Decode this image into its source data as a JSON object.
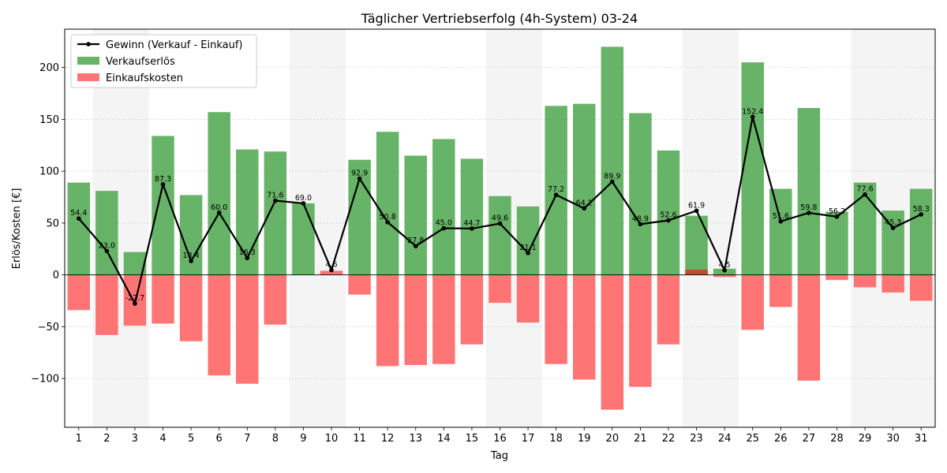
{
  "chart_data": {
    "type": "bar",
    "title": "Täglicher Vertriebserfolg (4h-System) 03-24",
    "xlabel": "Tag",
    "ylabel": "Erlös/Kosten [€]",
    "ylim": [
      -147,
      237
    ],
    "yticks": [
      -100,
      -50,
      0,
      50,
      100,
      150,
      200
    ],
    "ytick_labels": [
      "−100",
      "−50",
      "0",
      "50",
      "100",
      "150",
      "200"
    ],
    "grid": "horizontal dotted",
    "legend_position": "top-left",
    "categories": [
      "1",
      "2",
      "3",
      "4",
      "5",
      "6",
      "7",
      "8",
      "9",
      "10",
      "11",
      "12",
      "13",
      "14",
      "15",
      "16",
      "17",
      "18",
      "19",
      "20",
      "21",
      "22",
      "23",
      "24",
      "25",
      "26",
      "27",
      "28",
      "29",
      "30",
      "31"
    ],
    "weekend_days": [
      2,
      3,
      9,
      10,
      16,
      17,
      23,
      24,
      29,
      30,
      31
    ],
    "series": [
      {
        "name": "Verkaufserlös",
        "kind": "bar",
        "color": "#4ca64c",
        "values": [
          89,
          81,
          22,
          134,
          77,
          157,
          121,
          119,
          69,
          0,
          111,
          138,
          115,
          131,
          112,
          76,
          66,
          163,
          165,
          220,
          156,
          120,
          57,
          6,
          205,
          83,
          161,
          61,
          89,
          62,
          83
        ]
      },
      {
        "name": "Einkaufskosten",
        "kind": "bar",
        "color": "#ff6666",
        "values": [
          -34,
          -58,
          -49,
          -47,
          -64,
          -97,
          -105,
          -48,
          0,
          4,
          -19,
          -88,
          -87,
          -86,
          -67,
          -27,
          -46,
          -86,
          -101,
          -130,
          -108,
          -67,
          5,
          -2,
          -53,
          -31,
          -102,
          -5,
          -12,
          -17,
          -25
        ]
      },
      {
        "name": "Gewinn (Verkauf - Einkauf)",
        "kind": "line",
        "color": "#000000",
        "values": [
          54.4,
          23.0,
          -27.7,
          87.3,
          13.4,
          60.0,
          16.3,
          71.6,
          69.0,
          4.6,
          92.9,
          50.8,
          27.8,
          45.0,
          44.7,
          49.6,
          21.1,
          77.2,
          64.2,
          89.9,
          48.9,
          52.6,
          61.9,
          4.5,
          152.4,
          51.6,
          59.8,
          56.2,
          77.6,
          45.3,
          58.3
        ],
        "labels": [
          "54.4",
          "23.0",
          "-27.7",
          "87.3",
          "13.4",
          "60.0",
          "16.3",
          "71.6",
          "69.0",
          "4.6",
          "92.9",
          "50.8",
          "27.8",
          "45.0",
          "44.7",
          "49.6",
          "21.1",
          "77.2",
          "64.2",
          "89.9",
          "48.9",
          "52.6",
          "61.9",
          "4.5",
          "152.4",
          "51.6",
          "59.8",
          "56.2",
          "77.6",
          "45.3",
          "58.3"
        ]
      }
    ]
  }
}
